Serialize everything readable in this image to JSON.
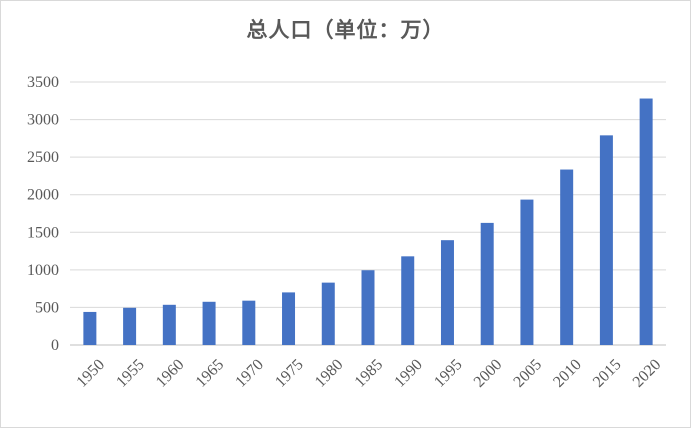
{
  "chart_data": {
    "type": "bar",
    "title": "总人口（单位：万）",
    "xlabel": "",
    "ylabel": "",
    "categories": [
      "1950",
      "1955",
      "1960",
      "1965",
      "1970",
      "1975",
      "1980",
      "1985",
      "1990",
      "1995",
      "2000",
      "2005",
      "2010",
      "2015",
      "2020"
    ],
    "values": [
      440,
      495,
      535,
      575,
      590,
      700,
      830,
      995,
      1180,
      1395,
      1625,
      1935,
      2335,
      2790,
      3280
    ],
    "ylim": [
      0,
      3500
    ],
    "yticks": [
      0,
      500,
      1000,
      1500,
      2000,
      2500,
      3000,
      3500
    ],
    "grid": true,
    "legend": "none",
    "colors": {
      "bar": "#4472c4",
      "grid": "#d9d9d9",
      "axis": "#bfbfbf",
      "text": "#595959"
    }
  }
}
